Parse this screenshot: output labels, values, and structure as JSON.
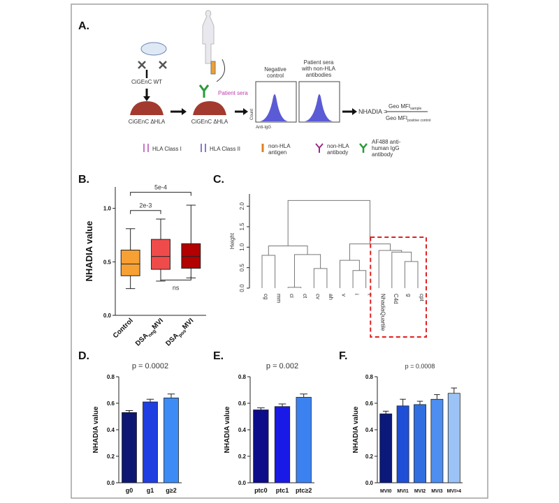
{
  "panel_labels": [
    "A.",
    "B.",
    "C.",
    "D.",
    "E.",
    "F."
  ],
  "diagram": {
    "wt_label": "CiGEnC WT",
    "ko_label": "CiGEnC ΔHLA",
    "ko_label_2": "CiGEnC ΔHLA",
    "sera_label": "Patient sera",
    "neg_title": [
      "Negative",
      "control"
    ],
    "pos_title": [
      "Patient sera",
      "with non-HLA",
      "antibodies"
    ],
    "hist_ylabel": "Count",
    "hist_xlabel": "Anti-IgG",
    "formula_lhs": "NHADIA =",
    "numerator": [
      "Geo MFI",
      "sample"
    ],
    "denominator": [
      "Geo MFI",
      "positive control"
    ],
    "legend": [
      [
        "HLA Class I"
      ],
      [
        "HLA Class II"
      ],
      [
        "non-HLA",
        "antigen"
      ],
      [
        "non-HLA",
        "antibody"
      ],
      [
        "AF488 anti-",
        "human IgG",
        "antibody"
      ]
    ]
  },
  "chart_data": [
    {
      "type": "box",
      "ylabel": "NHADIA value",
      "categories": [
        [
          "Control"
        ],
        [
          "DSA",
          "neg",
          "MVI"
        ],
        [
          "DSA",
          "pos",
          "MVI"
        ]
      ],
      "min": [
        0.25,
        0.32,
        0.35
      ],
      "q1": [
        0.37,
        0.43,
        0.44
      ],
      "median": [
        0.48,
        0.55,
        0.55
      ],
      "q3": [
        0.61,
        0.71,
        0.67
      ],
      "max": [
        0.81,
        0.9,
        1.03
      ],
      "colors": [
        "#f7a135",
        "#f04b4b",
        "#b30000"
      ],
      "ylim": [
        0,
        1.2
      ],
      "yticks": [
        {
          "value": 0,
          "label": "0.0"
        },
        0.5,
        {
          "value": 1,
          "label": "1.0"
        }
      ],
      "annotations": [
        {
          "text": "5e-4",
          "between": [
            0,
            2
          ],
          "y": 1.15
        },
        {
          "text": "2e-3",
          "between": [
            0,
            1
          ],
          "y": 0.98
        },
        {
          "text": "ns",
          "between": [
            1,
            2
          ],
          "y": 0.33
        }
      ]
    },
    {
      "type": "dendrogram",
      "ylabel": "Height",
      "leaves": [
        "cg",
        "mm",
        "ci",
        "ct",
        "cv",
        "ah",
        "v",
        "i",
        "t",
        "NhadiaQuartile",
        "C4d",
        "g",
        "cpt"
      ],
      "merges": [
        [
          2,
          3,
          0.02
        ],
        [
          4,
          5,
          0.48
        ],
        [
          7,
          8,
          0.43
        ],
        [
          6,
          15,
          0.68
        ],
        [
          11,
          12,
          0.65
        ],
        [
          10,
          17,
          0.88
        ],
        [
          9,
          18,
          0.92
        ],
        [
          0,
          1,
          0.8
        ],
        [
          13,
          14,
          0.82
        ],
        [
          20,
          21,
          1.03
        ],
        [
          16,
          19,
          1.08
        ],
        [
          22,
          23,
          2.14
        ]
      ],
      "highlight": [
        9,
        12
      ],
      "highlight_color": "#e02020",
      "ylim": [
        0,
        2.3
      ],
      "yticks": [
        {
          "value": 0,
          "label": "0.0"
        },
        0.5,
        {
          "value": 1,
          "label": "1.0"
        },
        1.5,
        {
          "value": 2,
          "label": "2.0"
        }
      ]
    },
    {
      "type": "bar",
      "title": "p = 0.0002",
      "ylabel": "NHADIA value",
      "categories": [
        "g0",
        "g1",
        "g≥2"
      ],
      "values": [
        0.53,
        0.61,
        0.64
      ],
      "errors": [
        0.015,
        0.02,
        0.03
      ],
      "colors": [
        "#0d1773",
        "#1f3fe0",
        "#3d8cf5"
      ],
      "ylim": [
        0,
        0.8
      ],
      "yticks": [
        {
          "value": 0,
          "label": "0.0"
        },
        0.2,
        0.4,
        0.6,
        0.8
      ]
    },
    {
      "type": "bar",
      "title": "p = 0.002",
      "ylabel": "NHADIA value",
      "categories": [
        "ptc0",
        "ptc1",
        "ptc≥2"
      ],
      "values": [
        0.55,
        0.575,
        0.645
      ],
      "errors": [
        0.015,
        0.02,
        0.025
      ],
      "colors": [
        "#0d0d8a",
        "#1a1ae6",
        "#3b82f0"
      ],
      "ylim": [
        0,
        0.8
      ],
      "yticks": [
        {
          "value": 0,
          "label": "0.0"
        },
        0.2,
        0.4,
        0.6,
        0.8
      ]
    },
    {
      "type": "bar",
      "title": "p = 0.0008",
      "ylabel": "NHADIA value",
      "categories": [
        "MVI0",
        "MVI1",
        "MVI2",
        "MVI3",
        "MVI>4"
      ],
      "values": [
        0.52,
        0.58,
        0.59,
        0.63,
        0.675
      ],
      "errors": [
        0.02,
        0.05,
        0.025,
        0.035,
        0.04
      ],
      "colors": [
        "#0b1a7a",
        "#1f4fd6",
        "#2f6fe0",
        "#4d8ef0",
        "#9cc3f5"
      ],
      "ylim": [
        0,
        0.8
      ],
      "yticks": [
        {
          "value": 0,
          "label": "0.0"
        },
        0.2,
        0.4,
        0.6,
        0.8
      ]
    }
  ]
}
